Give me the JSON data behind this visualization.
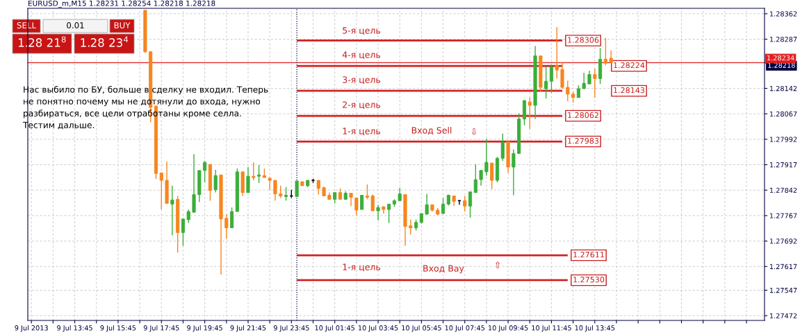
{
  "chart_data": {
    "type": "candlestick",
    "title": "EURUSD_m,M15 1.28231 1.28254 1.28218 1.28218",
    "x": [
      "2013-07-09T17:00",
      "2013-07-09T17:15",
      "2013-07-09T17:30",
      "2013-07-09T17:45",
      "2013-07-09T18:00",
      "2013-07-09T18:15",
      "2013-07-09T18:30",
      "2013-07-09T18:45",
      "2013-07-09T19:00",
      "2013-07-09T19:15",
      "2013-07-09T19:30",
      "2013-07-09T19:45",
      "2013-07-09T20:00",
      "2013-07-09T20:15",
      "2013-07-09T20:30",
      "2013-07-09T20:45",
      "2013-07-09T21:00",
      "2013-07-09T21:15",
      "2013-07-09T21:30",
      "2013-07-09T21:45",
      "2013-07-09T22:00",
      "2013-07-09T22:15",
      "2013-07-09T22:30",
      "2013-07-09T22:45",
      "2013-07-09T23:00",
      "2013-07-09T23:15",
      "2013-07-09T23:30",
      "2013-07-09T23:45",
      "2013-07-10T00:00",
      "2013-07-10T00:15",
      "2013-07-10T00:30",
      "2013-07-10T00:45",
      "2013-07-10T01:00",
      "2013-07-10T01:15",
      "2013-07-10T01:30",
      "2013-07-10T01:45",
      "2013-07-10T02:00",
      "2013-07-10T02:15",
      "2013-07-10T02:30",
      "2013-07-10T02:45",
      "2013-07-10T03:00",
      "2013-07-10T03:15",
      "2013-07-10T03:30",
      "2013-07-10T03:45",
      "2013-07-10T04:00",
      "2013-07-10T04:15",
      "2013-07-10T04:30",
      "2013-07-10T04:45",
      "2013-07-10T05:00",
      "2013-07-10T05:15",
      "2013-07-10T05:30",
      "2013-07-10T05:45",
      "2013-07-10T06:00",
      "2013-07-10T06:15",
      "2013-07-10T06:30",
      "2013-07-10T06:45",
      "2013-07-10T07:00",
      "2013-07-10T07:15",
      "2013-07-10T07:30",
      "2013-07-10T07:45",
      "2013-07-10T08:00",
      "2013-07-10T08:15",
      "2013-07-10T08:30",
      "2013-07-10T08:45",
      "2013-07-10T09:00",
      "2013-07-10T09:15",
      "2013-07-10T09:30",
      "2013-07-10T09:45",
      "2013-07-10T10:00",
      "2013-07-10T10:15",
      "2013-07-10T10:30",
      "2013-07-10T10:45",
      "2013-07-10T11:00",
      "2013-07-10T11:15",
      "2013-07-10T11:30",
      "2013-07-10T11:45",
      "2013-07-10T12:00",
      "2013-07-10T12:15",
      "2013-07-10T12:30",
      "2013-07-10T12:45",
      "2013-07-10T13:00",
      "2013-07-10T13:15",
      "2013-07-10T13:30",
      "2013-07-10T13:45",
      "2013-07-10T14:00",
      "2013-07-10T14:15",
      "2013-07-10T14:30"
    ],
    "ohlc": [
      [
        1.28372,
        1.28374,
        1.28246,
        1.2825
      ],
      [
        1.2825,
        1.28252,
        1.28042,
        1.28086
      ],
      [
        1.2809,
        1.2809,
        1.27875,
        1.27891
      ],
      [
        1.27893,
        1.27893,
        1.27785,
        1.27871
      ],
      [
        1.27871,
        1.27926,
        1.27803,
        1.27803
      ],
      [
        1.27801,
        1.27855,
        1.27709,
        1.27813
      ],
      [
        1.27815,
        1.27825,
        1.27658,
        1.27717
      ],
      [
        1.27717,
        1.27757,
        1.27678,
        1.27757
      ],
      [
        1.27755,
        1.27785,
        1.27745,
        1.27779
      ],
      [
        1.27777,
        1.27948,
        1.27775,
        1.27829
      ],
      [
        1.27829,
        1.279,
        1.27807,
        1.279
      ],
      [
        1.279,
        1.27928,
        1.27865,
        1.27924
      ],
      [
        1.27918,
        1.27918,
        1.27811,
        1.27841
      ],
      [
        1.27843,
        1.27902,
        1.27835,
        1.27885
      ],
      [
        1.27887,
        1.27887,
        1.27593,
        1.27757
      ],
      [
        1.27759,
        1.27771,
        1.27699,
        1.27731
      ],
      [
        1.27731,
        1.27791,
        1.27731,
        1.27779
      ],
      [
        1.27779,
        1.27906,
        1.27779,
        1.27896
      ],
      [
        1.27896,
        1.27896,
        1.27825,
        1.27835
      ],
      [
        1.27835,
        1.2791,
        1.27835,
        1.27883
      ],
      [
        1.27883,
        1.27924,
        1.27871,
        1.27879
      ],
      [
        1.27883,
        1.27916,
        1.27863,
        1.27887
      ],
      [
        1.27885,
        1.27906,
        1.27879,
        1.27879
      ],
      [
        1.27877,
        1.27881,
        1.27843,
        1.27871
      ],
      [
        1.27871,
        1.27871,
        1.27811,
        1.27831
      ],
      [
        1.27831,
        1.27855,
        1.27819,
        1.27825
      ],
      [
        1.27823,
        1.27851,
        1.27811,
        1.27827
      ],
      [
        1.27825,
        1.27843,
        1.27819,
        1.27825
      ],
      [
        1.27823,
        1.27869,
        1.27823,
        1.27869
      ],
      [
        1.27867,
        1.27867,
        1.27855,
        1.27855
      ],
      [
        1.27855,
        1.27871,
        1.27851,
        1.27871
      ],
      [
        1.27871,
        1.27875,
        1.27863,
        1.27871
      ],
      [
        1.27871,
        1.27871,
        1.27829,
        1.27847
      ],
      [
        1.27849,
        1.27853,
        1.27825,
        1.27825
      ],
      [
        1.27827,
        1.27835,
        1.27813,
        1.27815
      ],
      [
        1.27815,
        1.27835,
        1.27803,
        1.27835
      ],
      [
        1.27835,
        1.27847,
        1.27815,
        1.27815
      ],
      [
        1.27815,
        1.27839,
        1.27813,
        1.27833
      ],
      [
        1.27833,
        1.27833,
        1.27795,
        1.27821
      ],
      [
        1.27819,
        1.27819,
        1.27767,
        1.27783
      ],
      [
        1.27785,
        1.27827,
        1.27785,
        1.27827
      ],
      [
        1.27825,
        1.27859,
        1.27815,
        1.27821
      ],
      [
        1.27825,
        1.27829,
        1.27781,
        1.27781
      ],
      [
        1.27781,
        1.27799,
        1.27753,
        1.27791
      ],
      [
        1.27793,
        1.27795,
        1.27773,
        1.27785
      ],
      [
        1.27785,
        1.27801,
        1.27745,
        1.27801
      ],
      [
        1.27801,
        1.27815,
        1.27793,
        1.27811
      ],
      [
        1.27811,
        1.27849,
        1.27811,
        1.27831
      ],
      [
        1.27829,
        1.27829,
        1.27678,
        1.27735
      ],
      [
        1.27737,
        1.27755,
        1.27711,
        1.27731
      ],
      [
        1.27731,
        1.27755,
        1.27723,
        1.27747
      ],
      [
        1.27747,
        1.27773,
        1.27743,
        1.27773
      ],
      [
        1.27771,
        1.27831,
        1.27771,
        1.27799
      ],
      [
        1.27799,
        1.27799,
        1.27779,
        1.27783
      ],
      [
        1.27783,
        1.27789,
        1.27769,
        1.27771
      ],
      [
        1.27773,
        1.27819,
        1.27773,
        1.27801
      ],
      [
        1.27801,
        1.27829,
        1.27797,
        1.27827
      ],
      [
        1.27825,
        1.27825,
        1.27795,
        1.27809
      ],
      [
        1.27811,
        1.27811,
        1.27799,
        1.27811
      ],
      [
        1.27811,
        1.27825,
        1.27779,
        1.27795
      ],
      [
        1.27795,
        1.27837,
        1.27761,
        1.27837
      ],
      [
        1.27835,
        1.27918,
        1.27835,
        1.27873
      ],
      [
        1.27873,
        1.27902,
        1.27855,
        1.279
      ],
      [
        1.27896,
        1.27993,
        1.27885,
        1.27924
      ],
      [
        1.27922,
        1.27922,
        1.27845,
        1.27871
      ],
      [
        1.27871,
        1.2794,
        1.27865,
        1.27936
      ],
      [
        1.27936,
        1.28009,
        1.27928,
        1.27983
      ],
      [
        1.27985,
        1.27985,
        1.27893,
        1.2791
      ],
      [
        1.2791,
        1.27962,
        1.27827,
        1.2795
      ],
      [
        1.2795,
        1.28068,
        1.2795,
        1.28052
      ],
      [
        1.28052,
        1.28108,
        1.28033,
        1.28106
      ],
      [
        1.28102,
        1.28115,
        1.28023,
        1.28092
      ],
      [
        1.28092,
        1.28267,
        1.28052,
        1.28238
      ],
      [
        1.28238,
        1.28238,
        1.28133,
        1.28145
      ],
      [
        1.28141,
        1.28206,
        1.28112,
        1.28163
      ],
      [
        1.28163,
        1.28212,
        1.28129,
        1.28206
      ],
      [
        1.2821,
        1.28323,
        1.28171,
        1.28196
      ],
      [
        1.28198,
        1.2822,
        1.28141,
        1.28145
      ],
      [
        1.28145,
        1.28165,
        1.28104,
        1.28125
      ],
      [
        1.28125,
        1.28133,
        1.281,
        1.28115
      ],
      [
        1.28115,
        1.28151,
        1.28115,
        1.28141
      ],
      [
        1.28141,
        1.28188,
        1.28141,
        1.28157
      ],
      [
        1.28155,
        1.28194,
        1.28155,
        1.28183
      ],
      [
        1.28183,
        1.282,
        1.28115,
        1.28171
      ],
      [
        1.28171,
        1.28261,
        1.28155,
        1.28228
      ],
      [
        1.28228,
        1.28291,
        1.2821,
        1.28216
      ],
      [
        1.28231,
        1.28254,
        1.28218,
        1.28218
      ]
    ],
    "colors": [
      "#f7861e",
      "#f7861e",
      "#f7861e",
      "#f7861e",
      "#f7861e",
      "#3aae3a",
      "#f7861e",
      "#3aae3a",
      "#3aae3a",
      "#3aae3a",
      "#3aae3a",
      "#3aae3a",
      "#f7861e",
      "#3aae3a",
      "#f7861e",
      "#f7861e",
      "#3aae3a",
      "#3aae3a",
      "#f7861e",
      "#3aae3a",
      "#f7861e",
      "#3aae3a",
      "#f7861e",
      "#f7861e",
      "#f7861e",
      "#f7861e",
      "#3aae3a",
      "#000000",
      "#3aae3a",
      "#f7861e",
      "#3aae3a",
      "#000000",
      "#f7861e",
      "#f7861e",
      "#f7861e",
      "#3aae3a",
      "#f7861e",
      "#3aae3a",
      "#f7861e",
      "#f7861e",
      "#3aae3a",
      "#f7861e",
      "#f7861e",
      "#3aae3a",
      "#f7861e",
      "#3aae3a",
      "#3aae3a",
      "#3aae3a",
      "#f7861e",
      "#f7861e",
      "#3aae3a",
      "#3aae3a",
      "#3aae3a",
      "#f7861e",
      "#f7861e",
      "#3aae3a",
      "#3aae3a",
      "#f7861e",
      "#000000",
      "#f7861e",
      "#3aae3a",
      "#3aae3a",
      "#3aae3a",
      "#3aae3a",
      "#f7861e",
      "#3aae3a",
      "#3aae3a",
      "#f7861e",
      "#3aae3a",
      "#3aae3a",
      "#3aae3a",
      "#f7861e",
      "#3aae3a",
      "#f7861e",
      "#3aae3a",
      "#3aae3a",
      "#f7861e",
      "#f7861e",
      "#f7861e",
      "#f7861e",
      "#3aae3a",
      "#3aae3a",
      "#3aae3a",
      "#f7861e",
      "#3aae3a",
      "#f7861e",
      "#f7861e"
    ],
    "series": [
      {
        "type": "line",
        "color": "#d42020",
        "x": [
          "2013-07-10T00:00",
          "2013-07-10T12:15"
        ],
        "values": [
          1.28283,
          1.28283
        ]
      },
      {
        "type": "line",
        "color": "#d42020",
        "x": [
          "2013-07-10T00:00",
          "2013-07-10T12:15"
        ],
        "values": [
          1.28208,
          1.28208
        ]
      },
      {
        "type": "line",
        "color": "#d42020",
        "x": [
          "2013-07-10T00:00",
          "2013-07-10T12:15"
        ],
        "values": [
          1.28135,
          1.28135
        ]
      },
      {
        "type": "line",
        "color": "#d42020",
        "x": [
          "2013-07-10T00:00",
          "2013-07-10T12:15"
        ],
        "values": [
          1.28061,
          1.28061
        ]
      },
      {
        "type": "line",
        "color": "#d42020",
        "x": [
          "2013-07-10T00:00",
          "2013-07-10T12:15"
        ],
        "values": [
          1.27985,
          1.27985
        ]
      },
      {
        "type": "line",
        "color": "#d42020",
        "x": [
          "2013-07-10T00:00",
          "2013-07-10T12:30"
        ],
        "values": [
          1.2765,
          1.2765
        ]
      },
      {
        "type": "line",
        "color": "#d42020",
        "x": [
          "2013-07-10T00:00",
          "2013-07-10T12:30"
        ],
        "values": [
          1.27577,
          1.27577
        ]
      }
    ],
    "ylim": [
      1.27458,
      1.28378
    ],
    "yticks": [
      1.28362,
      1.28287,
      {
        "value": 1.28217,
        "label": null
      },
      1.28142,
      1.28067,
      1.27992,
      1.27917,
      1.27842,
      1.27767,
      1.27692,
      1.27617,
      1.27547,
      1.27472
    ],
    "xlim": [
      "2013-07-09T11:35",
      "2013-07-10T21:35"
    ],
    "xticks": [
      {
        "value": "2013-07-09T11:45",
        "label": "9 Jul 2013"
      },
      {
        "value": "2013-07-09T12:45",
        "label": null
      },
      {
        "value": "2013-07-09T13:45",
        "label": "9 Jul 13:45"
      },
      {
        "value": "2013-07-09T14:45",
        "label": null
      },
      {
        "value": "2013-07-09T15:45",
        "label": "9 Jul 15:45"
      },
      {
        "value": "2013-07-09T16:45",
        "label": null
      },
      {
        "value": "2013-07-09T17:45",
        "label": "9 Jul 17:45"
      },
      {
        "value": "2013-07-09T18:45",
        "label": null
      },
      {
        "value": "2013-07-09T19:45",
        "label": "9 Jul 19:45"
      },
      {
        "value": "2013-07-09T20:45",
        "label": null
      },
      {
        "value": "2013-07-09T21:45",
        "label": "9 Jul 21:45"
      },
      {
        "value": "2013-07-09T22:45",
        "label": null
      },
      {
        "value": "2013-07-09T23:45",
        "label": "9 Jul 23:45"
      },
      {
        "value": "2013-07-10T00:45",
        "label": null
      },
      {
        "value": "2013-07-10T01:45",
        "label": "10 Jul 01:45"
      },
      {
        "value": "2013-07-10T02:45",
        "label": null
      },
      {
        "value": "2013-07-10T03:45",
        "label": "10 Jul 03:45"
      },
      {
        "value": "2013-07-10T04:45",
        "label": null
      },
      {
        "value": "2013-07-10T05:45",
        "label": "10 Jul 05:45"
      },
      {
        "value": "2013-07-10T06:45",
        "label": null
      },
      {
        "value": "2013-07-10T07:45",
        "label": "10 Jul 07:45"
      },
      {
        "value": "2013-07-10T08:45",
        "label": null
      },
      {
        "value": "2013-07-10T09:45",
        "label": "10 Jul 09:45"
      },
      {
        "value": "2013-07-10T10:45",
        "label": null
      },
      {
        "value": "2013-07-10T11:45",
        "label": "10 Jul 11:45"
      },
      {
        "value": "2013-07-10T12:45",
        "label": null
      },
      {
        "value": "2013-07-10T13:45",
        "label": "10 Jul 13:45"
      },
      {
        "value": "2013-07-10T14:45",
        "label": null
      },
      {
        "value": "2013-07-10T15:45",
        "label": null
      },
      {
        "value": "2013-07-10T16:45",
        "label": null
      },
      {
        "value": "2013-07-10T17:45",
        "label": null
      },
      {
        "value": "2013-07-10T18:45",
        "label": null
      },
      {
        "value": "2013-07-10T19:45",
        "label": null
      },
      {
        "value": "2013-07-10T20:45",
        "label": null
      }
    ],
    "grid": true,
    "ref_lines": [
      {
        "axis": "y",
        "value": 1.28218,
        "label": "1.28218",
        "color": "#e02020"
      },
      {
        "axis": "x",
        "value": "2013-07-10T00:00",
        "color": "#000040",
        "line_style": "dotted"
      }
    ],
    "annotations": [
      "Нас выбило по БУ, больше в сделку не входил. Теперь\nне понятно почему мы не дотянули до входа, нужно\nразбираться, все цели отработаны кроме селла.\nТестим дальше.",
      "SELL",
      "0.01",
      "BUY",
      "1.28 21$^{8}$",
      "1.28 23$^{4}$",
      "1.28234",
      "5-я цель",
      "4-я цель",
      "3-я цель",
      "2-я цель",
      "1-я цель",
      "Вход Sell",
      "⇩",
      "1-я цель",
      "Вход Bay",
      "⇧",
      "1.28306",
      "1.28224",
      "1.28143",
      "1.28062",
      "1.27983",
      "1.27611",
      "1.27530"
    ]
  }
}
